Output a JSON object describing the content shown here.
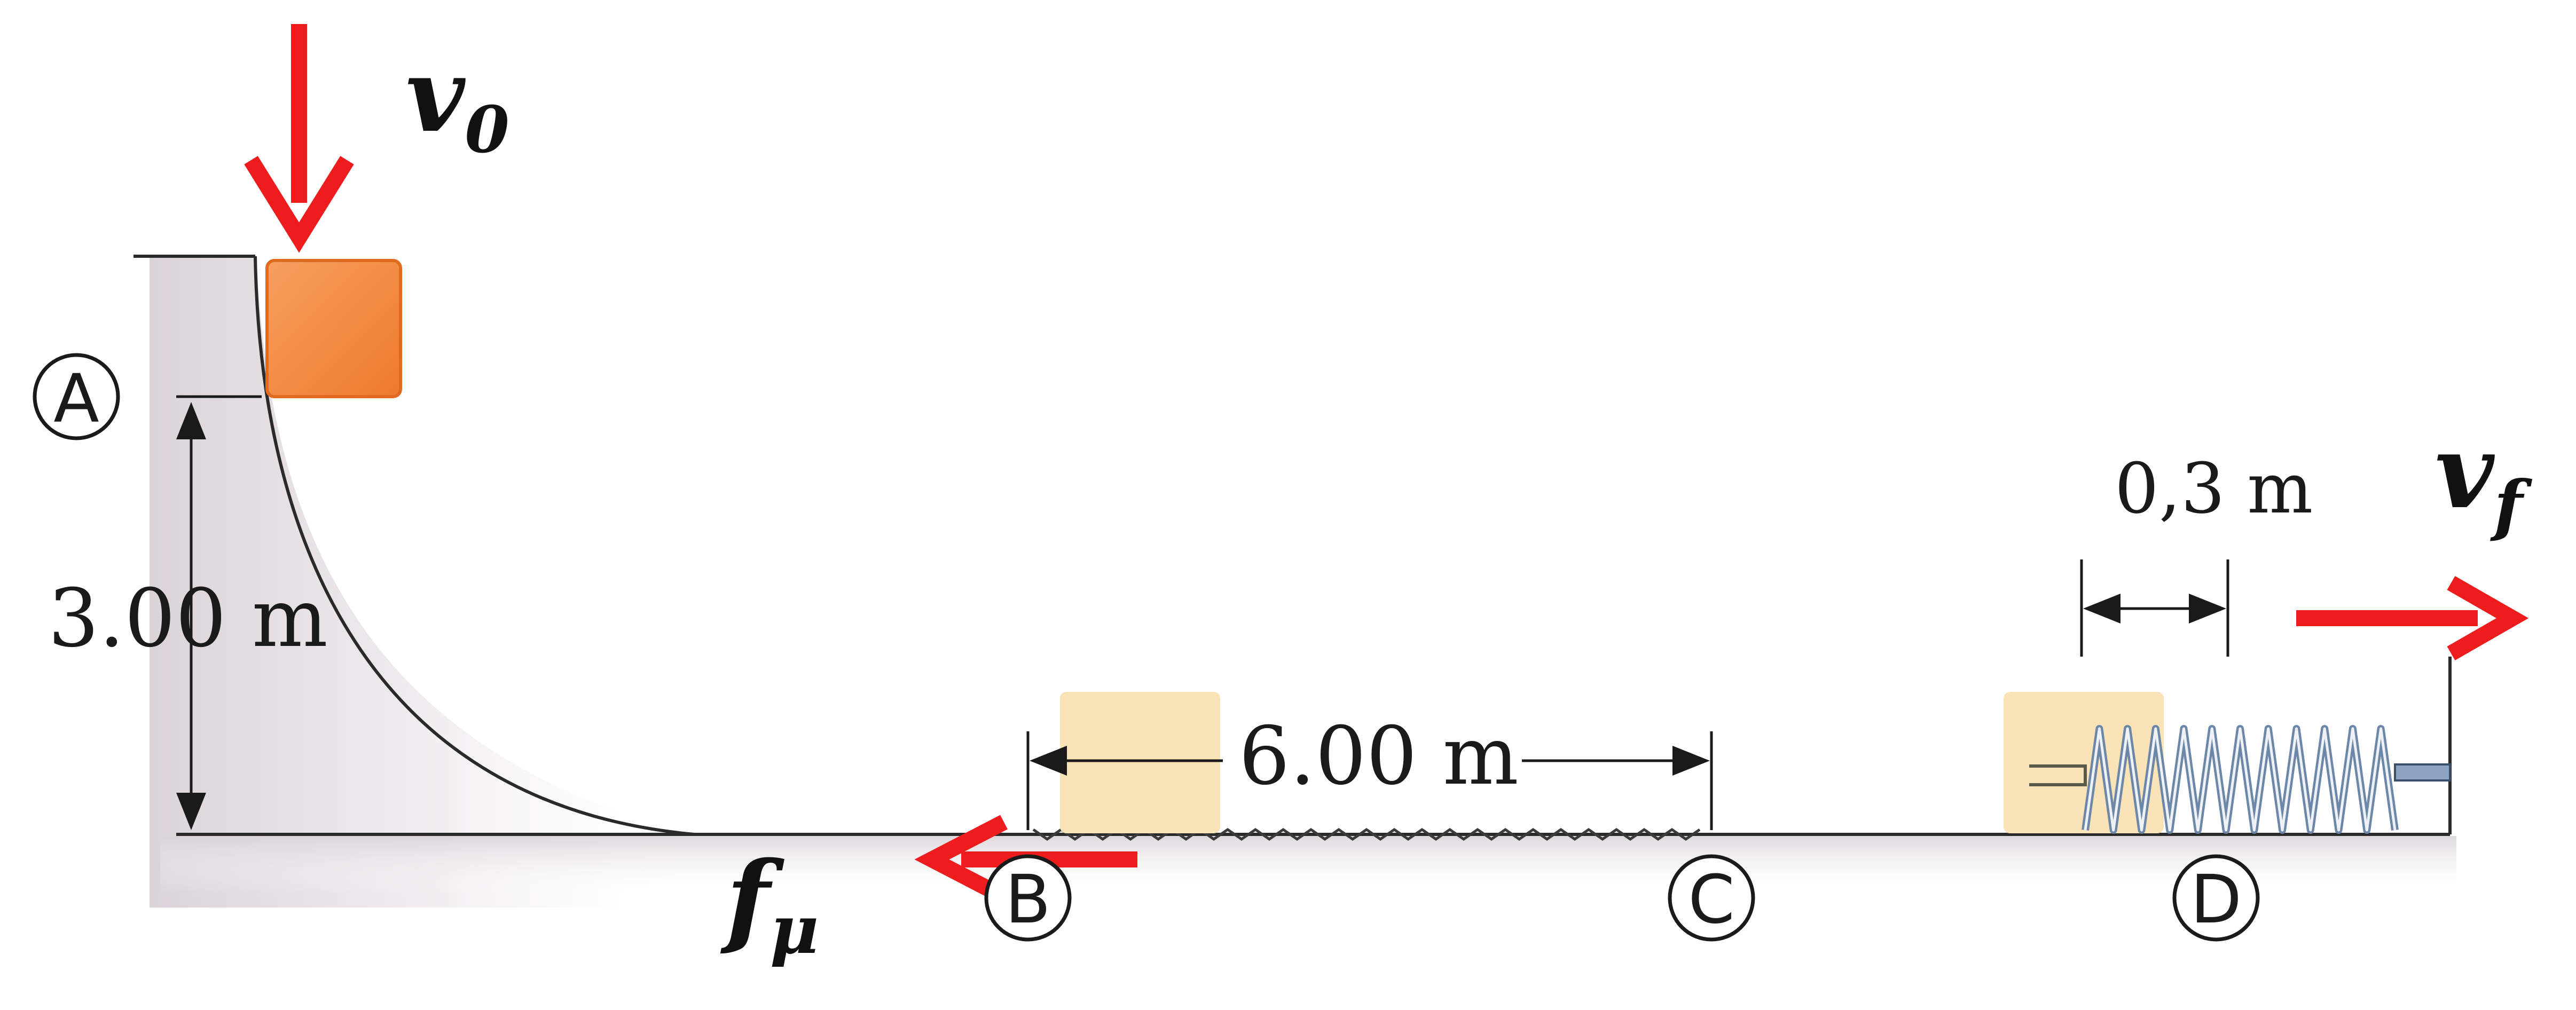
{
  "labels": {
    "v0": "v",
    "v0_sub": "0",
    "vf": "v",
    "vf_sub": "f",
    "friction": "f",
    "friction_sub": "μ",
    "height": "3.00 m",
    "rough_length": "6.00 m",
    "spring_compression": "0,3 m"
  },
  "points": [
    {
      "id": "A",
      "label": "A"
    },
    {
      "id": "B",
      "label": "B"
    },
    {
      "id": "C",
      "label": "C"
    },
    {
      "id": "D",
      "label": "D"
    }
  ],
  "colors": {
    "arrow": "#ee1c1c",
    "block_top": "#f2893f",
    "block_ghost": "#fbe3b8",
    "spring": "#6d87a8",
    "line": "#2a2a2a"
  },
  "icons": {
    "velocity_arrow": "arrow-icon",
    "spring": "spring-icon"
  }
}
